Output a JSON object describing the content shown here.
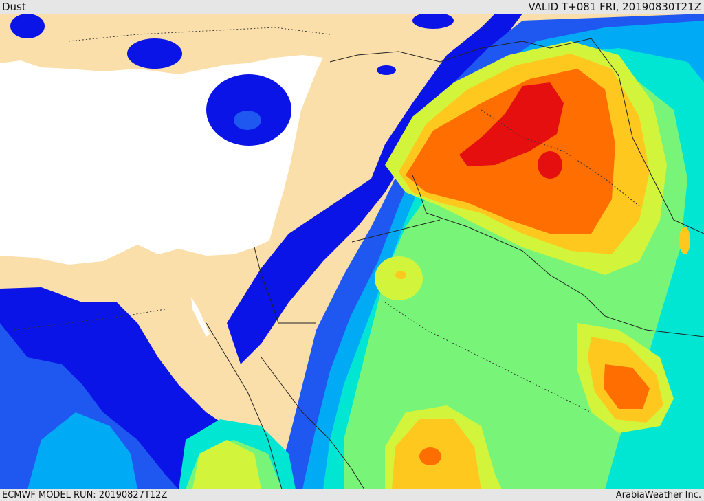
{
  "header": {
    "title": "Dust",
    "valid_time": "VALID T+081 FRI, 20190830T21Z"
  },
  "footer": {
    "model_run": "ECMWF MODEL RUN: 20190827T12Z",
    "credit": "ArabiaWeather Inc."
  },
  "map": {
    "field": "Dust",
    "colors": {
      "land": "#fbdfaa",
      "sea": "#ffffff",
      "level_1": "#0a14e6",
      "level_2": "#1e58f0",
      "level_3": "#00aaf5",
      "level_4": "#00e6d2",
      "level_5": "#78f578",
      "level_6": "#d2f53c",
      "level_7": "#ffc81e",
      "level_8": "#ff6e00",
      "level_9": "#e60f0f"
    }
  }
}
